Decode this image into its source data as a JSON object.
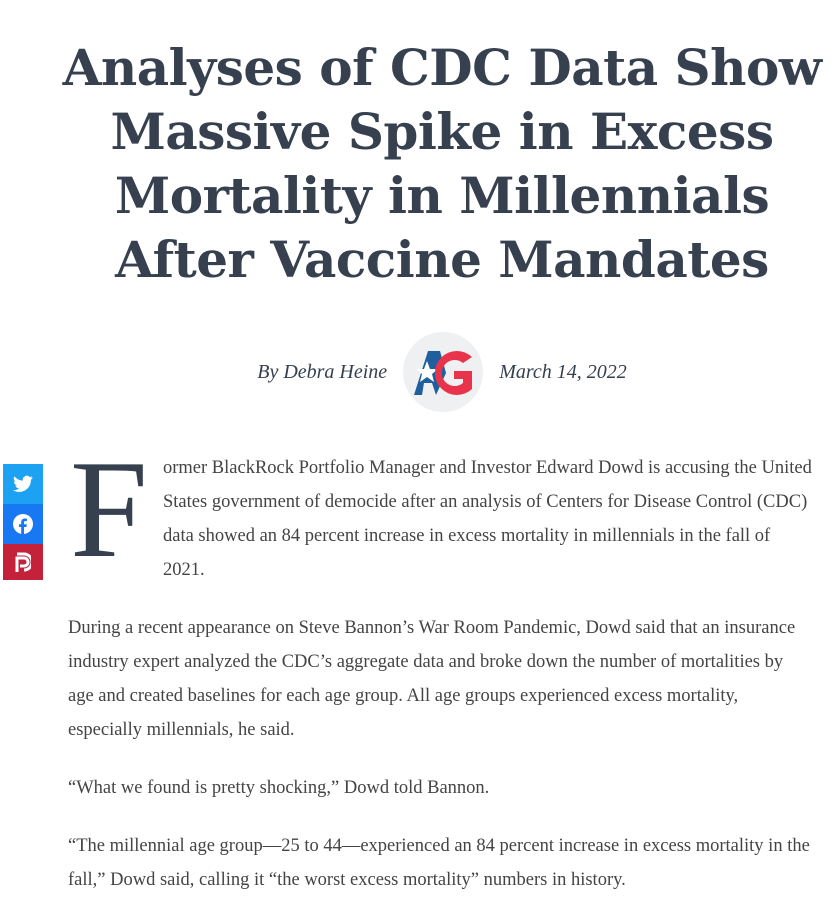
{
  "article": {
    "title": "Analyses of CDC Data Show Massive Spike in Excess Mortality in Millennials After Vaccine Mandates",
    "author": "By Debra Heine",
    "date": "March 14, 2022",
    "logo_text": "AG",
    "drop_cap": "F",
    "paragraphs": [
      "ormer BlackRock Portfolio Manager and Investor Edward Dowd is accusing the United States government of democide after an analysis of Centers for Disease Control (CDC) data showed an 84 percent increase in excess mortality in millennials in the fall of 2021.",
      "During a recent appearance on Steve Bannon’s War Room Pandemic, Dowd said that an insurance industry expert analyzed the CDC’s aggregate data and broke down the number of mortalities by age and created baselines for each age group. All age groups experienced excess mortality, especially millennials, he said.",
      "“What we found is pretty shocking,” Dowd told Bannon.",
      "“The millennial age group—25 to 44—experienced an 84 percent increase in excess mortality in the fall,” Dowd said, calling it “the worst  excess mortality” numbers in history."
    ]
  },
  "social": [
    {
      "icon": "twitter-icon",
      "color": "#1da1f2"
    },
    {
      "icon": "facebook-icon",
      "color": "#1877f2"
    },
    {
      "icon": "parler-icon",
      "color": "#c4213b"
    }
  ]
}
